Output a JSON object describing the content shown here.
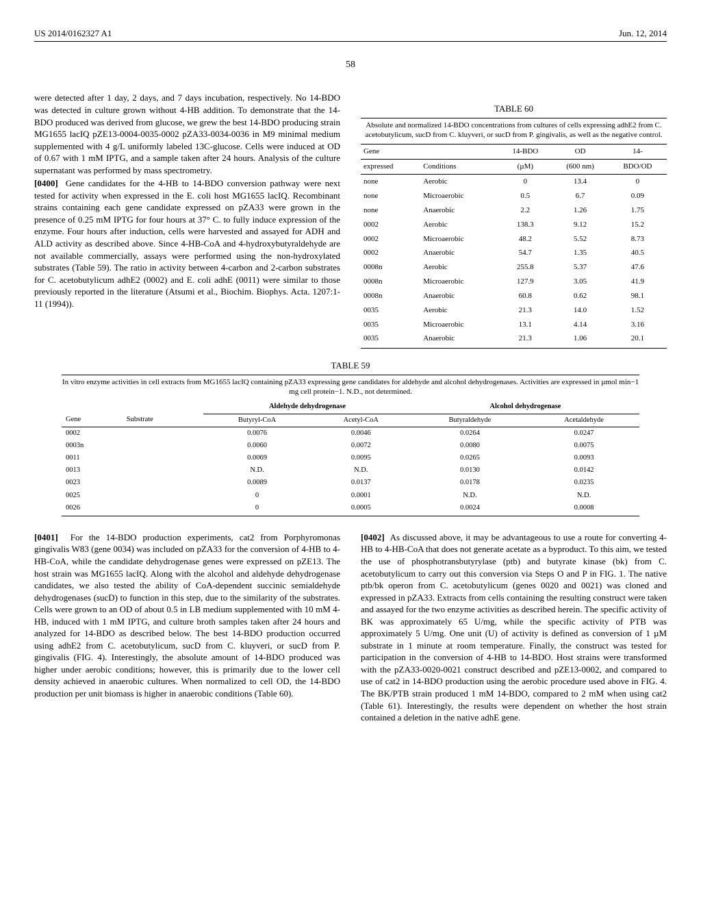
{
  "header": {
    "left": "US 2014/0162327 A1",
    "right": "Jun. 12, 2014"
  },
  "pagenum": "58",
  "col_left_top": {
    "p1": "were detected after 1 day, 2 days, and 7 days incubation, respectively. No 14-BDO was detected in culture grown without 4-HB addition. To demonstrate that the 14-BDO produced was derived from glucose, we grew the best 14-BDO producing strain MG1655 lacIQ pZE13-0004-0035-0002 pZA33-0034-0036 in M9 minimal medium supplemented with 4 g/L uniformly labeled 13C-glucose. Cells were induced at OD of 0.67 with 1 mM IPTG, and a sample taken after 24 hours. Analysis of the culture supernatant was performed by mass spectrometry.",
    "p2_num": "[0400]",
    "p2": "Gene candidates for the 4-HB to 14-BDO conversion pathway were next tested for activity when expressed in the E. coli host MG1655 lacIQ. Recombinant strains containing each gene candidate expressed on pZA33 were grown in the presence of 0.25 mM IPTG for four hours at 37° C. to fully induce expression of the enzyme. Four hours after induction, cells were harvested and assayed for ADH and ALD activity as described above. Since 4-HB-CoA and 4-hydroxybutyraldehyde are not available commercially, assays were performed using the non-hydroxylated substrates (Table 59). The ratio in activity between 4-carbon and 2-carbon substrates for C. acetobutylicum adhE2 (0002) and E. coli adhE (0011) were similar to those previously reported in the literature (Atsumi et al., Biochim. Biophys. Acta. 1207:1-11 (1994))."
  },
  "table60": {
    "title": "TABLE 60",
    "caption": "Absolute and normalized 14-BDO concentrations from cultures of cells expressing adhE2 from C. acetobutylicum, sucD from C. kluyveri, or sucD from P. gingivalis, as well as the negative control.",
    "headers": {
      "c1a": "Gene",
      "c1b": "expressed",
      "c2": "Conditions",
      "c3a": "14-BDO",
      "c3b": "(µM)",
      "c4a": "OD",
      "c4b": "(600 nm)",
      "c5a": "14-",
      "c5b": "BDO/OD"
    },
    "rows": [
      {
        "g": "none",
        "c": "Aerobic",
        "b": "0",
        "o": "13.4",
        "r": "0"
      },
      {
        "g": "none",
        "c": "Microaerobic",
        "b": "0.5",
        "o": "6.7",
        "r": "0.09"
      },
      {
        "g": "none",
        "c": "Anaerobic",
        "b": "2.2",
        "o": "1.26",
        "r": "1.75"
      },
      {
        "g": "0002",
        "c": "Aerobic",
        "b": "138.3",
        "o": "9.12",
        "r": "15.2"
      },
      {
        "g": "0002",
        "c": "Microaerobic",
        "b": "48.2",
        "o": "5.52",
        "r": "8.73"
      },
      {
        "g": "0002",
        "c": "Anaerobic",
        "b": "54.7",
        "o": "1.35",
        "r": "40.5"
      },
      {
        "g": "0008n",
        "c": "Aerobic",
        "b": "255.8",
        "o": "5.37",
        "r": "47.6"
      },
      {
        "g": "0008n",
        "c": "Microaerobic",
        "b": "127.9",
        "o": "3.05",
        "r": "41.9"
      },
      {
        "g": "0008n",
        "c": "Anaerobic",
        "b": "60.8",
        "o": "0.62",
        "r": "98.1"
      },
      {
        "g": "0035",
        "c": "Aerobic",
        "b": "21.3",
        "o": "14.0",
        "r": "1.52"
      },
      {
        "g": "0035",
        "c": "Microaerobic",
        "b": "13.1",
        "o": "4.14",
        "r": "3.16"
      },
      {
        "g": "0035",
        "c": "Anaerobic",
        "b": "21.3",
        "o": "1.06",
        "r": "20.1"
      }
    ]
  },
  "table59": {
    "title": "TABLE 59",
    "caption": "In vitro enzyme activities in cell extracts from MG1655 lacIQ containing pZA33 expressing gene candidates for aldehyde and alcohol dehydrogenases. Activities are expressed in µmol min−1 mg cell protein−1. N.D., not determined.",
    "grp1": "Aldehyde dehydrogenase",
    "grp2": "Alcohol dehydrogenase",
    "headers": {
      "c1": "Gene",
      "c2": "Substrate",
      "c3": "Butyryl-CoA",
      "c4": "Acetyl-CoA",
      "c5": "Butyraldehyde",
      "c6": "Acetaldehyde"
    },
    "rows": [
      {
        "g": "0002",
        "s": "",
        "a": "0.0076",
        "b": "0.0046",
        "c": "0.0264",
        "d": "0.0247"
      },
      {
        "g": "0003n",
        "s": "",
        "a": "0.0060",
        "b": "0.0072",
        "c": "0.0080",
        "d": "0.0075"
      },
      {
        "g": "0011",
        "s": "",
        "a": "0.0069",
        "b": "0.0095",
        "c": "0.0265",
        "d": "0.0093"
      },
      {
        "g": "0013",
        "s": "",
        "a": "N.D.",
        "b": "N.D.",
        "c": "0.0130",
        "d": "0.0142"
      },
      {
        "g": "0023",
        "s": "",
        "a": "0.0089",
        "b": "0.0137",
        "c": "0.0178",
        "d": "0.0235"
      },
      {
        "g": "0025",
        "s": "",
        "a": "0",
        "b": "0.0001",
        "c": "N.D.",
        "d": "N.D."
      },
      {
        "g": "0026",
        "s": "",
        "a": "0",
        "b": "0.0005",
        "c": "0.0024",
        "d": "0.0008"
      }
    ]
  },
  "col_left_bottom": {
    "p3_num": "[0401]",
    "p3": "For the 14-BDO production experiments, cat2 from Porphyromonas gingivalis W83 (gene 0034) was included on pZA33 for the conversion of 4-HB to 4-HB-CoA, while the candidate dehydrogenase genes were expressed on pZE13. The host strain was MG1655 lacIQ. Along with the alcohol and aldehyde dehydrogenase candidates, we also tested the ability of CoA-dependent succinic semialdehyde dehydrogenases (sucD) to function in this step, due to the similarity of the substrates. Cells were grown to an OD of about 0.5 in LB medium supplemented with 10 mM 4-HB, induced with 1 mM IPTG, and culture broth samples taken after 24 hours and analyzed for 14-BDO as described below. The best 14-BDO production occurred using adhE2 from C. acetobutylicum, sucD from C. kluyveri, or sucD from P. gingivalis (FIG. 4). Interestingly, the absolute amount of 14-BDO produced was higher under aerobic conditions; however, this is primarily due to the lower cell density achieved in anaerobic cultures. When normalized to cell OD, the 14-BDO production per unit biomass is higher in anaerobic conditions (Table 60)."
  },
  "col_right_bottom": {
    "p4_num": "[0402]",
    "p4": "As discussed above, it may be advantageous to use a route for converting 4-HB to 4-HB-CoA that does not generate acetate as a byproduct. To this aim, we tested the use of phosphotransbutyrylase (ptb) and butyrate kinase (bk) from C. acetobutylicum to carry out this conversion via Steps O and P in FIG. 1. The native ptb/bk operon from C. acetobutylicum (genes 0020 and 0021) was cloned and expressed in pZA33. Extracts from cells containing the resulting construct were taken and assayed for the two enzyme activities as described herein. The specific activity of BK was approximately 65 U/mg, while the specific activity of PTB was approximately 5 U/mg. One unit (U) of activity is defined as conversion of 1 µM substrate in 1 minute at room temperature. Finally, the construct was tested for participation in the conversion of 4-HB to 14-BDO. Host strains were transformed with the pZA33-0020-0021 construct described and pZE13-0002, and compared to use of cat2 in 14-BDO production using the aerobic procedure used above in FIG. 4. The BK/PTB strain produced 1 mM 14-BDO, compared to 2 mM when using cat2 (Table 61). Interestingly, the results were dependent on whether the host strain contained a deletion in the native adhE gene."
  }
}
